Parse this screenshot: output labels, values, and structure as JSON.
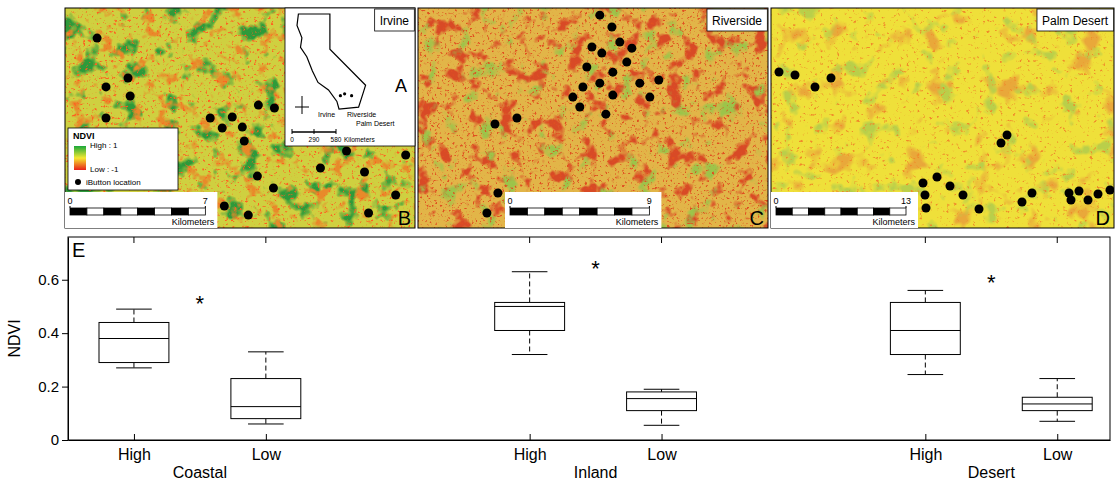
{
  "chart_data": {
    "type": "box",
    "panel_label": "E",
    "ylabel": "NDVI",
    "categories": [
      "High",
      "Low",
      "High",
      "Low",
      "High",
      "Low"
    ],
    "groups": [
      "Coastal",
      "Inland",
      "Desert"
    ],
    "min": [
      0.27,
      0.06,
      0.32,
      0.055,
      0.245,
      0.07
    ],
    "q1": [
      0.29,
      0.08,
      0.41,
      0.11,
      0.32,
      0.11
    ],
    "median": [
      0.38,
      0.125,
      0.5,
      0.155,
      0.41,
      0.135
    ],
    "q3": [
      0.44,
      0.23,
      0.515,
      0.18,
      0.515,
      0.16
    ],
    "max": [
      0.49,
      0.33,
      0.63,
      0.19,
      0.56,
      0.23
    ],
    "ylim": [
      0,
      0.76
    ],
    "yticks": [
      0,
      0.2,
      0.4,
      0.6
    ],
    "annotations": [
      {
        "text": "*",
        "group": 0,
        "y": 0.52
      },
      {
        "text": "*",
        "group": 1,
        "y": 0.65
      },
      {
        "text": "*",
        "group": 2,
        "y": 0.6
      }
    ]
  },
  "maps": [
    {
      "letter": "B",
      "title": "Irvine",
      "xlim": [
        0,
        18.1
      ],
      "ylim": [
        0,
        11.4
      ],
      "scale_ticks": [
        0,
        7
      ],
      "scale_unit": "Kilometers",
      "points": [
        [
          1.66,
          9.84
        ],
        [
          2.12,
          7.31
        ],
        [
          3.26,
          7.77
        ],
        [
          3.37,
          6.84
        ],
        [
          2.12,
          5.7
        ],
        [
          10.0,
          6.37
        ],
        [
          7.51,
          5.7
        ],
        [
          8.13,
          5.18
        ],
        [
          8.65,
          5.75
        ],
        [
          9.17,
          5.23
        ],
        [
          9.27,
          4.51
        ],
        [
          10.83,
          6.22
        ],
        [
          9.95,
          2.69
        ],
        [
          10.78,
          2.07
        ],
        [
          8.24,
          1.14
        ],
        [
          9.48,
          0.67
        ],
        [
          13.21,
          3.11
        ],
        [
          14.56,
          3.99
        ],
        [
          15.49,
          2.9
        ],
        [
          15.7,
          0.78
        ],
        [
          17.62,
          3.78
        ],
        [
          17.1,
          1.71
        ]
      ]
    },
    {
      "letter": "C",
      "title": "Riverside",
      "xlim": [
        0,
        22.6
      ],
      "ylim": [
        0,
        14.2
      ],
      "scale_ticks": [
        0,
        9
      ],
      "scale_unit": "Kilometers",
      "points": [
        [
          11.74,
          13.74
        ],
        [
          12.52,
          12.97
        ],
        [
          11.23,
          11.68
        ],
        [
          11.87,
          11.29
        ],
        [
          13.03,
          12.0
        ],
        [
          13.81,
          11.61
        ],
        [
          10.9,
          10.39
        ],
        [
          12.58,
          10.06
        ],
        [
          13.48,
          10.71
        ],
        [
          11.74,
          9.35
        ],
        [
          12.58,
          8.58
        ],
        [
          14.32,
          9.35
        ],
        [
          15.55,
          9.55
        ],
        [
          10.0,
          8.45
        ],
        [
          10.65,
          9.1
        ],
        [
          10.45,
          7.81
        ],
        [
          12.13,
          7.35
        ],
        [
          14.97,
          8.45
        ],
        [
          4.97,
          6.71
        ],
        [
          6.39,
          7.1
        ],
        [
          5.16,
          2.26
        ],
        [
          4.45,
          0.97
        ]
      ]
    },
    {
      "letter": "D",
      "title": "Palm Desert",
      "xlim": [
        0,
        34.3
      ],
      "ylim": [
        0,
        22.0
      ],
      "scale_ticks": [
        0,
        13
      ],
      "scale_unit": "Kilometers",
      "points": [
        [
          0.8,
          15.6
        ],
        [
          2.4,
          15.3
        ],
        [
          4.4,
          14.1
        ],
        [
          6.0,
          15.0
        ],
        [
          23.6,
          9.3
        ],
        [
          23.0,
          8.5
        ],
        [
          16.6,
          5.1
        ],
        [
          15.2,
          4.5
        ],
        [
          17.9,
          4.2
        ],
        [
          15.4,
          3.3
        ],
        [
          19.2,
          3.3
        ],
        [
          15.5,
          2.0
        ],
        [
          20.8,
          1.9
        ],
        [
          25.1,
          2.6
        ],
        [
          26.1,
          3.5
        ],
        [
          29.8,
          3.5
        ],
        [
          30.8,
          3.7
        ],
        [
          31.7,
          2.8
        ],
        [
          30.0,
          2.8
        ],
        [
          32.7,
          3.4
        ],
        [
          33.9,
          3.8
        ]
      ]
    }
  ],
  "map_legend": {
    "title": "NDVI",
    "color_ticks": [
      {
        "value": 1,
        "label": "High : 1"
      },
      {
        "value": -1,
        "label": "Low : -1"
      }
    ],
    "points_label": "iButton location"
  },
  "inset": {
    "letter": "A",
    "places": [
      "Irvine",
      "Riverside",
      "Palm Desert"
    ],
    "scale_ticks": [
      0,
      290,
      580
    ],
    "scale_unit": "Kilometers"
  }
}
